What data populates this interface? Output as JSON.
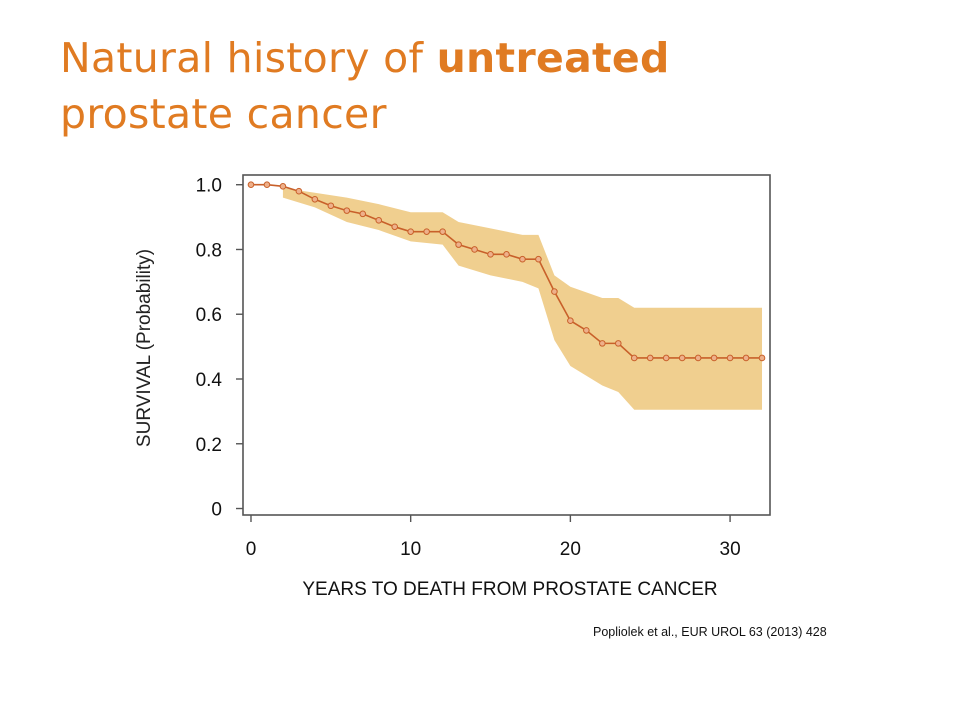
{
  "slide": {
    "title_line1_normal": "Natural history of ",
    "title_line1_bold": "untreated",
    "title_line2": "prostate cancer",
    "citation": "Popliolek et al., EUR UROL 63 (2013) 428"
  },
  "chart_data": {
    "type": "line",
    "title": "",
    "xlabel": "YEARS TO DEATH FROM PROSTATE CANCER",
    "ylabel": "SURVIVAL (Probability)",
    "xlim": [
      -0.5,
      32.5
    ],
    "ylim": [
      -0.02,
      1.03
    ],
    "x_ticks": [
      0,
      10,
      20,
      30
    ],
    "x_tick_labels": [
      "0",
      "10",
      "20",
      "30"
    ],
    "y_ticks": [
      0,
      0.2,
      0.4,
      0.6,
      0.8,
      1.0
    ],
    "y_tick_labels": [
      "0",
      "0.2",
      "0.4",
      "0.6",
      "0.8",
      "1.0"
    ],
    "grid": false,
    "colors": {
      "line": "#c8602a",
      "band": "#f0cf8f",
      "title": "#e07b22"
    },
    "series": [
      {
        "x": [
          0,
          1,
          2,
          3,
          4,
          5,
          6,
          7,
          8,
          9,
          10,
          11,
          12,
          13,
          14,
          15,
          16,
          17,
          18,
          19,
          20,
          21,
          22,
          23,
          24,
          25,
          26,
          27,
          28,
          29,
          30,
          31,
          32
        ],
        "values": [
          1.0,
          1.0,
          0.995,
          0.98,
          0.955,
          0.935,
          0.92,
          0.91,
          0.89,
          0.87,
          0.855,
          0.855,
          0.855,
          0.815,
          0.8,
          0.785,
          0.785,
          0.77,
          0.77,
          0.67,
          0.58,
          0.55,
          0.51,
          0.51,
          0.465,
          0.465,
          0.465,
          0.465,
          0.465,
          0.465,
          0.465,
          0.465,
          0.465
        ]
      }
    ],
    "confidence_band": {
      "x": [
        2,
        4,
        6,
        8,
        10,
        12,
        13,
        15,
        17,
        18,
        19,
        20,
        22,
        23,
        24,
        32
      ],
      "upper": [
        0.99,
        0.975,
        0.96,
        0.94,
        0.915,
        0.915,
        0.885,
        0.865,
        0.845,
        0.845,
        0.72,
        0.685,
        0.65,
        0.65,
        0.62,
        0.62
      ],
      "lower": [
        0.96,
        0.93,
        0.885,
        0.86,
        0.825,
        0.815,
        0.75,
        0.72,
        0.7,
        0.68,
        0.52,
        0.44,
        0.38,
        0.36,
        0.305,
        0.305
      ]
    }
  }
}
